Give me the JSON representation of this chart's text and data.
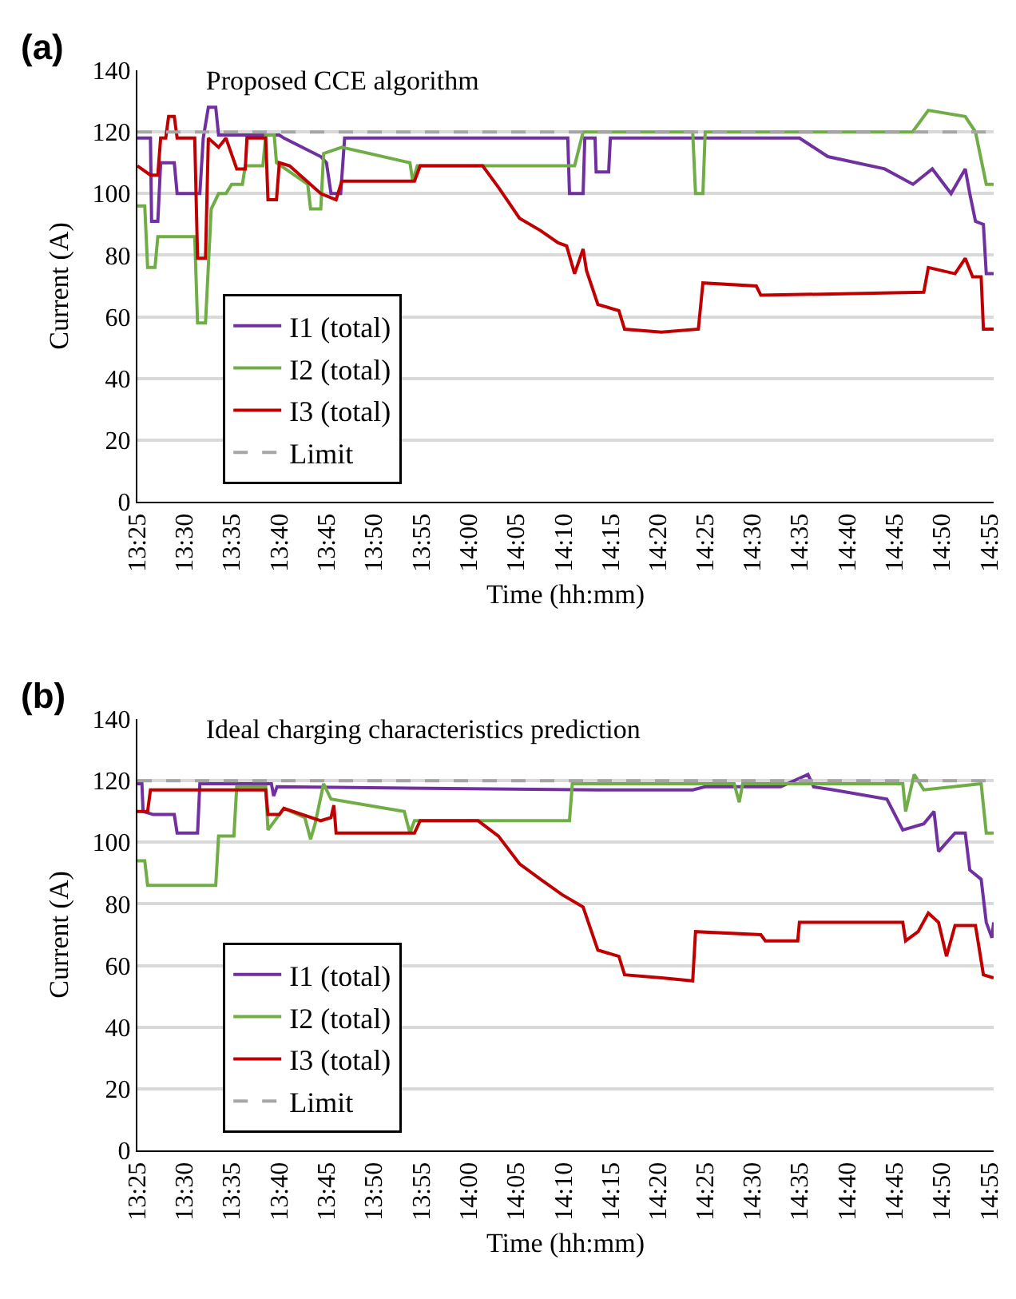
{
  "chart_data": [
    {
      "type": "line",
      "title": "Proposed CCE algorithm",
      "xlabel": "Time (hh:mm)",
      "ylabel": "Current (A)",
      "annotations": [
        "(a)"
      ],
      "xlim": [
        13.417,
        14.925
      ],
      "ylim": [
        0,
        140
      ],
      "yticks": [
        0,
        20,
        40,
        60,
        80,
        100,
        120,
        140
      ],
      "xticks": [
        {
          "value": 13.417,
          "label": "13:25"
        },
        {
          "value": 13.5,
          "label": "13:30"
        },
        {
          "value": 13.583,
          "label": "13:35"
        },
        {
          "value": 13.667,
          "label": "13:40"
        },
        {
          "value": 13.75,
          "label": "13:45"
        },
        {
          "value": 13.833,
          "label": "13:50"
        },
        {
          "value": 13.917,
          "label": "13:55"
        },
        {
          "value": 14,
          "label": "14:00"
        },
        {
          "value": 14.083,
          "label": "14:05"
        },
        {
          "value": 14.167,
          "label": "14:10"
        },
        {
          "value": 14.25,
          "label": "14:15"
        },
        {
          "value": 14.333,
          "label": "14:20"
        },
        {
          "value": 14.417,
          "label": "14:25"
        },
        {
          "value": 14.5,
          "label": "14:30"
        },
        {
          "value": 14.583,
          "label": "14:35"
        },
        {
          "value": 14.667,
          "label": "14:40"
        },
        {
          "value": 14.75,
          "label": "14:45"
        },
        {
          "value": 14.833,
          "label": "14:50"
        },
        {
          "value": 14.917,
          "label": "14:55"
        }
      ],
      "grid": "y",
      "legend": "bottom left",
      "marker": "none",
      "line_style": "solid",
      "series": [
        {
          "name": "I1 (total)",
          "color": "#7030a0",
          "x": [
            13.417,
            13.44,
            13.442,
            13.453,
            13.458,
            13.482,
            13.487,
            13.527,
            13.533,
            13.542,
            13.555,
            13.56,
            13.667,
            13.675,
            13.74,
            13.75,
            13.758,
            13.775,
            13.782,
            14.175,
            14.178,
            14.202,
            14.205,
            14.223,
            14.225,
            14.247,
            14.25,
            14.583,
            14.633,
            14.733,
            14.783,
            14.817,
            14.85,
            14.875,
            14.883,
            14.893,
            14.907,
            14.912,
            14.925
          ],
          "values": [
            118,
            118,
            91,
            91,
            110,
            110,
            100,
            100,
            118,
            128,
            128,
            119,
            119,
            118,
            112,
            110,
            100,
            100,
            118,
            118,
            100,
            100,
            118,
            118,
            107,
            107,
            118,
            118,
            112,
            108,
            103,
            108,
            100,
            108,
            100,
            91,
            90,
            74,
            74
          ]
        },
        {
          "name": "I2 (total)",
          "color": "#70ad47",
          "x": [
            13.417,
            13.43,
            13.435,
            13.448,
            13.453,
            13.518,
            13.523,
            13.537,
            13.547,
            13.56,
            13.573,
            13.583,
            13.602,
            13.607,
            13.638,
            13.643,
            13.658,
            13.662,
            13.717,
            13.722,
            13.74,
            13.745,
            13.777,
            13.897,
            13.902,
            13.91,
            14.187,
            14.202,
            14.395,
            14.4,
            14.413,
            14.417,
            14.782,
            14.81,
            14.875,
            14.893,
            14.912,
            14.925
          ],
          "values": [
            96,
            96,
            76,
            76,
            86,
            86,
            58,
            58,
            95,
            100,
            100,
            103,
            103,
            109,
            109,
            119,
            119,
            110,
            103,
            95,
            95,
            113,
            115,
            110,
            104,
            109,
            109,
            120,
            120,
            100,
            100,
            120,
            120,
            127,
            125,
            120,
            103,
            103
          ]
        },
        {
          "name": "I3 (total)",
          "color": "#c00000",
          "x": [
            13.417,
            13.44,
            13.453,
            13.458,
            13.467,
            13.472,
            13.482,
            13.487,
            13.518,
            13.523,
            13.537,
            13.542,
            13.56,
            13.573,
            13.592,
            13.607,
            13.61,
            13.643,
            13.647,
            13.662,
            13.667,
            13.685,
            13.74,
            13.767,
            13.777,
            13.905,
            13.915,
            14.025,
            14.053,
            14.09,
            14.127,
            14.158,
            14.173,
            14.187,
            14.202,
            14.208,
            14.228,
            14.265,
            14.275,
            14.34,
            14.405,
            14.413,
            14.507,
            14.515,
            14.802,
            14.81,
            14.857,
            14.875,
            14.888,
            14.903,
            14.907,
            14.925
          ],
          "values": [
            109,
            106,
            106,
            118,
            118,
            125,
            125,
            118,
            118,
            79,
            79,
            118,
            115,
            118,
            108,
            108,
            118,
            118,
            98,
            98,
            110,
            109,
            100,
            98,
            104,
            104,
            109,
            109,
            102,
            92,
            88,
            84,
            83,
            74,
            82,
            75,
            64,
            62,
            56,
            55,
            56,
            71,
            70,
            67,
            68,
            76,
            74,
            79,
            73,
            73,
            56,
            56
          ]
        },
        {
          "name": "Limit",
          "color": "#a5a5a5",
          "line_style": "dashed",
          "x": [
            13.417,
            14.925
          ],
          "values": [
            120,
            120
          ]
        }
      ]
    },
    {
      "type": "line",
      "title": "Ideal charging characteristics prediction",
      "xlabel": "Time (hh:mm)",
      "ylabel": "Current (A)",
      "annotations": [
        "(b)"
      ],
      "xlim": [
        13.417,
        14.925
      ],
      "ylim": [
        0,
        140
      ],
      "yticks": [
        0,
        20,
        40,
        60,
        80,
        100,
        120,
        140
      ],
      "xticks": [
        {
          "value": 13.417,
          "label": "13:25"
        },
        {
          "value": 13.5,
          "label": "13:30"
        },
        {
          "value": 13.583,
          "label": "13:35"
        },
        {
          "value": 13.667,
          "label": "13:40"
        },
        {
          "value": 13.75,
          "label": "13:45"
        },
        {
          "value": 13.833,
          "label": "13:50"
        },
        {
          "value": 13.917,
          "label": "13:55"
        },
        {
          "value": 14,
          "label": "14:00"
        },
        {
          "value": 14.083,
          "label": "14:05"
        },
        {
          "value": 14.167,
          "label": "14:10"
        },
        {
          "value": 14.25,
          "label": "14:15"
        },
        {
          "value": 14.333,
          "label": "14:20"
        },
        {
          "value": 14.417,
          "label": "14:25"
        },
        {
          "value": 14.5,
          "label": "14:30"
        },
        {
          "value": 14.583,
          "label": "14:35"
        },
        {
          "value": 14.667,
          "label": "14:40"
        },
        {
          "value": 14.75,
          "label": "14:45"
        },
        {
          "value": 14.833,
          "label": "14:50"
        },
        {
          "value": 14.917,
          "label": "14:55"
        }
      ],
      "grid": "y",
      "legend": "bottom left",
      "marker": "none",
      "line_style": "solid",
      "series": [
        {
          "name": "I1 (total)",
          "color": "#7030a0",
          "x": [
            13.417,
            13.425,
            13.427,
            13.445,
            13.482,
            13.487,
            13.523,
            13.527,
            13.653,
            13.657,
            13.663,
            14.228,
            14.395,
            14.417,
            14.55,
            14.598,
            14.608,
            14.643,
            14.737,
            14.765,
            14.802,
            14.82,
            14.828,
            14.857,
            14.875,
            14.883,
            14.903,
            14.912,
            14.922,
            14.925
          ],
          "values": [
            119,
            119,
            110,
            109,
            109,
            103,
            103,
            119,
            119,
            115,
            118,
            117,
            117,
            118,
            118,
            122,
            118,
            117,
            114,
            104,
            106,
            110,
            97,
            103,
            103,
            91,
            88,
            74,
            69,
            74
          ]
        },
        {
          "name": "I2 (total)",
          "color": "#70ad47",
          "x": [
            13.417,
            13.43,
            13.435,
            13.555,
            13.56,
            13.587,
            13.592,
            13.643,
            13.647,
            13.675,
            13.712,
            13.722,
            13.73,
            13.745,
            13.758,
            13.887,
            13.897,
            13.905,
            14.178,
            14.183,
            14.468,
            14.477,
            14.483,
            14.765,
            14.77,
            14.785,
            14.802,
            14.903,
            14.912,
            14.925
          ],
          "values": [
            94,
            94,
            86,
            86,
            102,
            102,
            118,
            118,
            104,
            111,
            108,
            101,
            106,
            119,
            114,
            110,
            103,
            107,
            107,
            119,
            119,
            113,
            119,
            119,
            110,
            122,
            117,
            119,
            103,
            103
          ]
        },
        {
          "name": "I3 (total)",
          "color": "#c00000",
          "x": [
            13.417,
            13.435,
            13.44,
            13.643,
            13.647,
            13.667,
            13.675,
            13.74,
            13.758,
            13.763,
            13.767,
            13.905,
            13.915,
            14.017,
            14.053,
            14.09,
            14.127,
            14.165,
            14.202,
            14.228,
            14.265,
            14.275,
            14.34,
            14.395,
            14.4,
            14.515,
            14.523,
            14.58,
            14.583,
            14.765,
            14.77,
            14.792,
            14.81,
            14.828,
            14.842,
            14.857,
            14.893,
            14.907,
            14.925
          ],
          "values": [
            110,
            110,
            117,
            117,
            109,
            109,
            111,
            107,
            108,
            112,
            103,
            103,
            107,
            107,
            102,
            93,
            88,
            83,
            79,
            65,
            63,
            57,
            56,
            55,
            71,
            70,
            68,
            68,
            74,
            74,
            68,
            71,
            77,
            74,
            63,
            73,
            73,
            57,
            56
          ]
        },
        {
          "name": "Limit",
          "color": "#a5a5a5",
          "line_style": "dashed",
          "x": [
            13.417,
            14.925
          ],
          "values": [
            120,
            120
          ]
        }
      ]
    }
  ]
}
